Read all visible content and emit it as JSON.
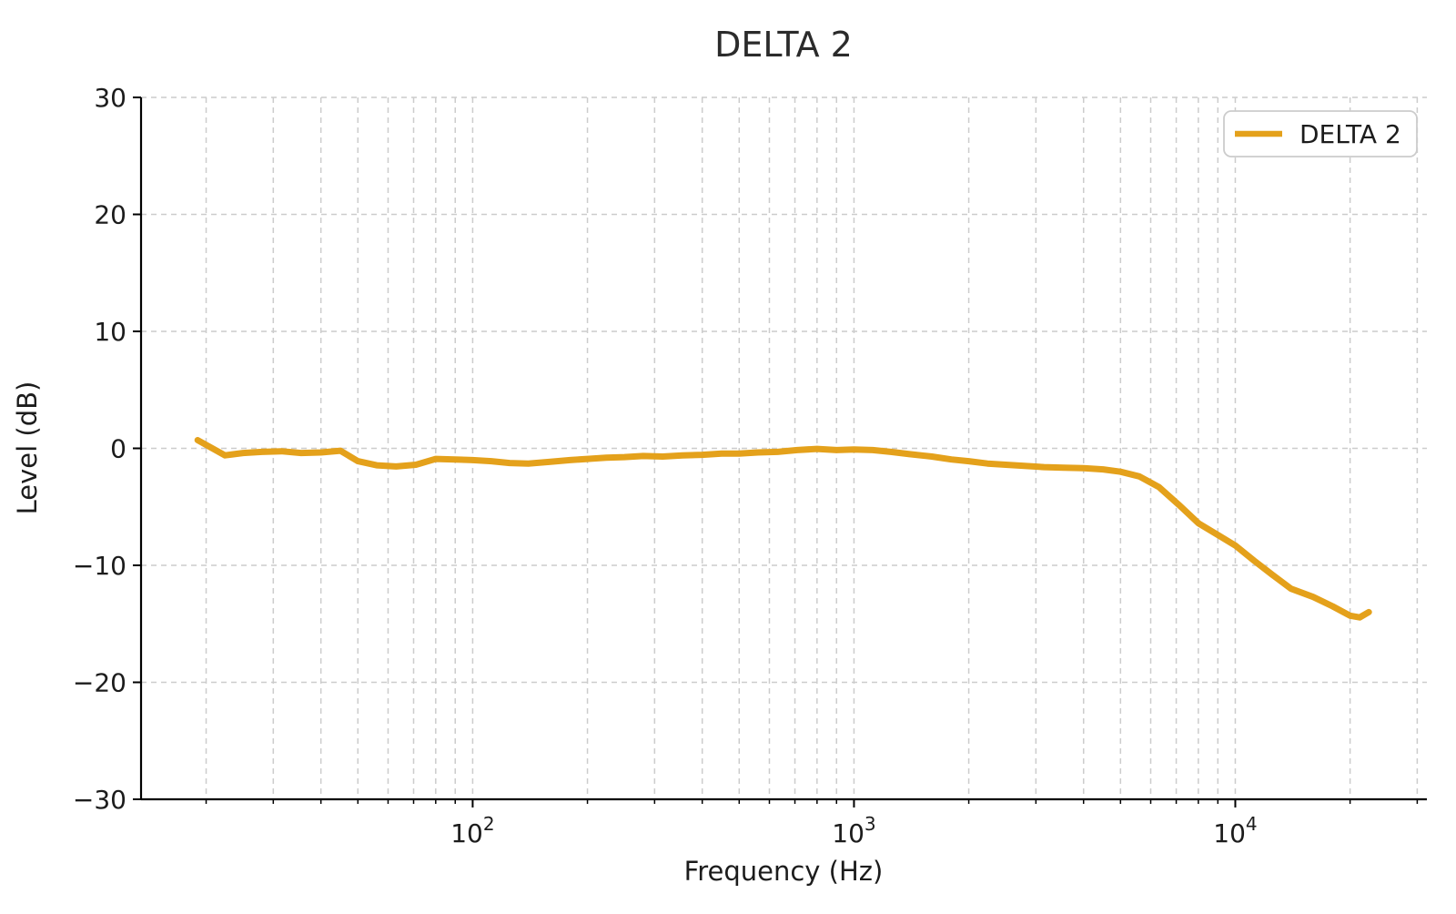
{
  "figure": {
    "background": "#ffffff"
  },
  "chart_data": {
    "type": "line",
    "title": "DELTA 2",
    "xlabel": "Frequency (Hz)",
    "ylabel": "Level (dB)",
    "x_scale": "log",
    "xlim": [
      13.5,
      31800
    ],
    "ylim": [
      -30,
      30
    ],
    "yticks": [
      -30,
      -20,
      -10,
      0,
      10,
      20,
      30
    ],
    "xticks_major": [
      100,
      1000,
      10000
    ],
    "xtick_label_base": "10",
    "xtick_label_exponents": [
      "2",
      "3",
      "4"
    ],
    "grid": "dashed",
    "grid_color": "#cccccc",
    "axis_color": "#000000",
    "text_color": "#1c1c1c",
    "legend": {
      "label": "DELTA 2",
      "position": "upper-right"
    },
    "series": [
      {
        "name": "DELTA 2",
        "color": "#E4A11B",
        "line_width": 7,
        "points": [
          [
            19,
            0.7
          ],
          [
            22.4,
            -0.6
          ],
          [
            25,
            -0.4
          ],
          [
            28,
            -0.3
          ],
          [
            31.5,
            -0.25
          ],
          [
            35.5,
            -0.4
          ],
          [
            40,
            -0.35
          ],
          [
            45,
            -0.2
          ],
          [
            50,
            -1.1
          ],
          [
            56,
            -1.45
          ],
          [
            63,
            -1.55
          ],
          [
            71,
            -1.4
          ],
          [
            80,
            -0.9
          ],
          [
            90,
            -0.95
          ],
          [
            100,
            -1.0
          ],
          [
            112,
            -1.1
          ],
          [
            125,
            -1.25
          ],
          [
            140,
            -1.3
          ],
          [
            160,
            -1.15
          ],
          [
            180,
            -1.0
          ],
          [
            200,
            -0.9
          ],
          [
            224,
            -0.8
          ],
          [
            250,
            -0.75
          ],
          [
            280,
            -0.65
          ],
          [
            315,
            -0.7
          ],
          [
            355,
            -0.6
          ],
          [
            400,
            -0.55
          ],
          [
            450,
            -0.45
          ],
          [
            500,
            -0.45
          ],
          [
            560,
            -0.35
          ],
          [
            630,
            -0.3
          ],
          [
            710,
            -0.15
          ],
          [
            800,
            -0.05
          ],
          [
            900,
            -0.15
          ],
          [
            1000,
            -0.1
          ],
          [
            1120,
            -0.15
          ],
          [
            1250,
            -0.3
          ],
          [
            1400,
            -0.5
          ],
          [
            1600,
            -0.7
          ],
          [
            1800,
            -0.95
          ],
          [
            2000,
            -1.1
          ],
          [
            2240,
            -1.3
          ],
          [
            2500,
            -1.4
          ],
          [
            2800,
            -1.5
          ],
          [
            3150,
            -1.6
          ],
          [
            3550,
            -1.65
          ],
          [
            4000,
            -1.7
          ],
          [
            4500,
            -1.8
          ],
          [
            5000,
            -2.0
          ],
          [
            5600,
            -2.4
          ],
          [
            6300,
            -3.3
          ],
          [
            7100,
            -4.8
          ],
          [
            8000,
            -6.4
          ],
          [
            9000,
            -7.4
          ],
          [
            10000,
            -8.3
          ],
          [
            11200,
            -9.6
          ],
          [
            12500,
            -10.8
          ],
          [
            14000,
            -12.0
          ],
          [
            16000,
            -12.7
          ],
          [
            18000,
            -13.5
          ],
          [
            20000,
            -14.3
          ],
          [
            21200,
            -14.45
          ],
          [
            22400,
            -14.0
          ]
        ]
      }
    ]
  }
}
